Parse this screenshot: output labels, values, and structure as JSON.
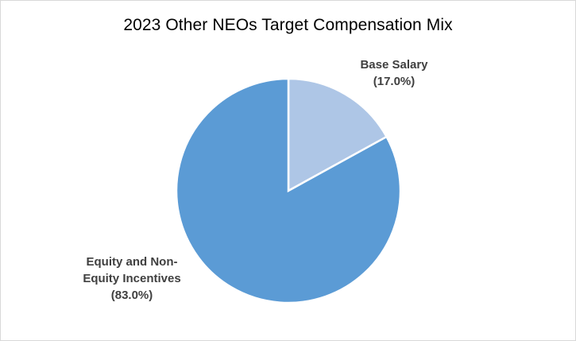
{
  "chart_data": {
    "type": "pie",
    "title": "2023 Other NEOs Target Compensation  Mix",
    "slices": [
      {
        "name": "Base Salary",
        "value": 17.0,
        "percent_label": "(17.0%)",
        "color": "#aec6e6",
        "label_lines": [
          "Base Salary",
          "(17.0%)"
        ]
      },
      {
        "name": "Equity and Non-Equity Incentives",
        "value": 83.0,
        "percent_label": "(83.0%)",
        "color": "#5b9bd5",
        "label_lines": [
          "Equity and Non-",
          "Equity Incentives",
          "(83.0%)"
        ]
      }
    ],
    "start_angle": "12 o'clock",
    "direction": "clockwise",
    "legend": "none",
    "slice_border_color": "#ffffff"
  }
}
